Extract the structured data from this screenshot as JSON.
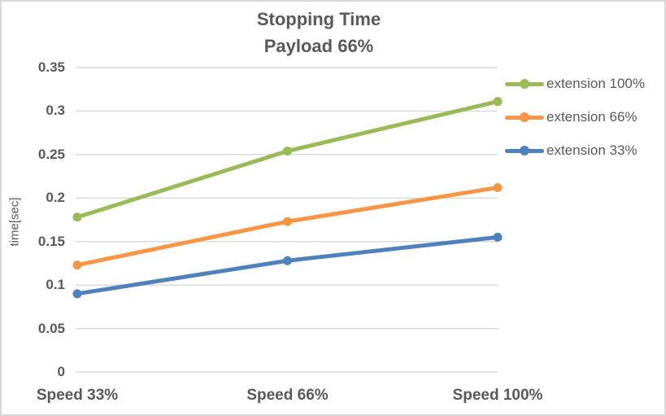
{
  "chart_data": {
    "type": "line",
    "title": "Stopping Time",
    "subtitle": "Payload 66%",
    "xlabel": "",
    "ylabel": "time[sec]",
    "categories": [
      "Speed 33%",
      "Speed 66%",
      "Speed 100%"
    ],
    "series": [
      {
        "name": "extension 100%",
        "color": "#9BBB59",
        "values": [
          0.178,
          0.254,
          0.311
        ]
      },
      {
        "name": "extension 66%",
        "color": "#F79646",
        "values": [
          0.123,
          0.173,
          0.212
        ]
      },
      {
        "name": "extension 33%",
        "color": "#4F81BD",
        "values": [
          0.09,
          0.128,
          0.155
        ]
      }
    ],
    "ylim": [
      0,
      0.35
    ],
    "ytick_labels": [
      "0",
      "0.05",
      "0.1",
      "0.15",
      "0.2",
      "0.25",
      "0.3",
      "0.35"
    ],
    "grid": true,
    "legend_position": "right"
  },
  "style": {
    "text_color": "#595959",
    "gridline_color": "#D9D9D9",
    "border_color": "#D7D7D7",
    "background": "#FFFFFF",
    "line_width": 5,
    "marker_radius": 5.5
  }
}
